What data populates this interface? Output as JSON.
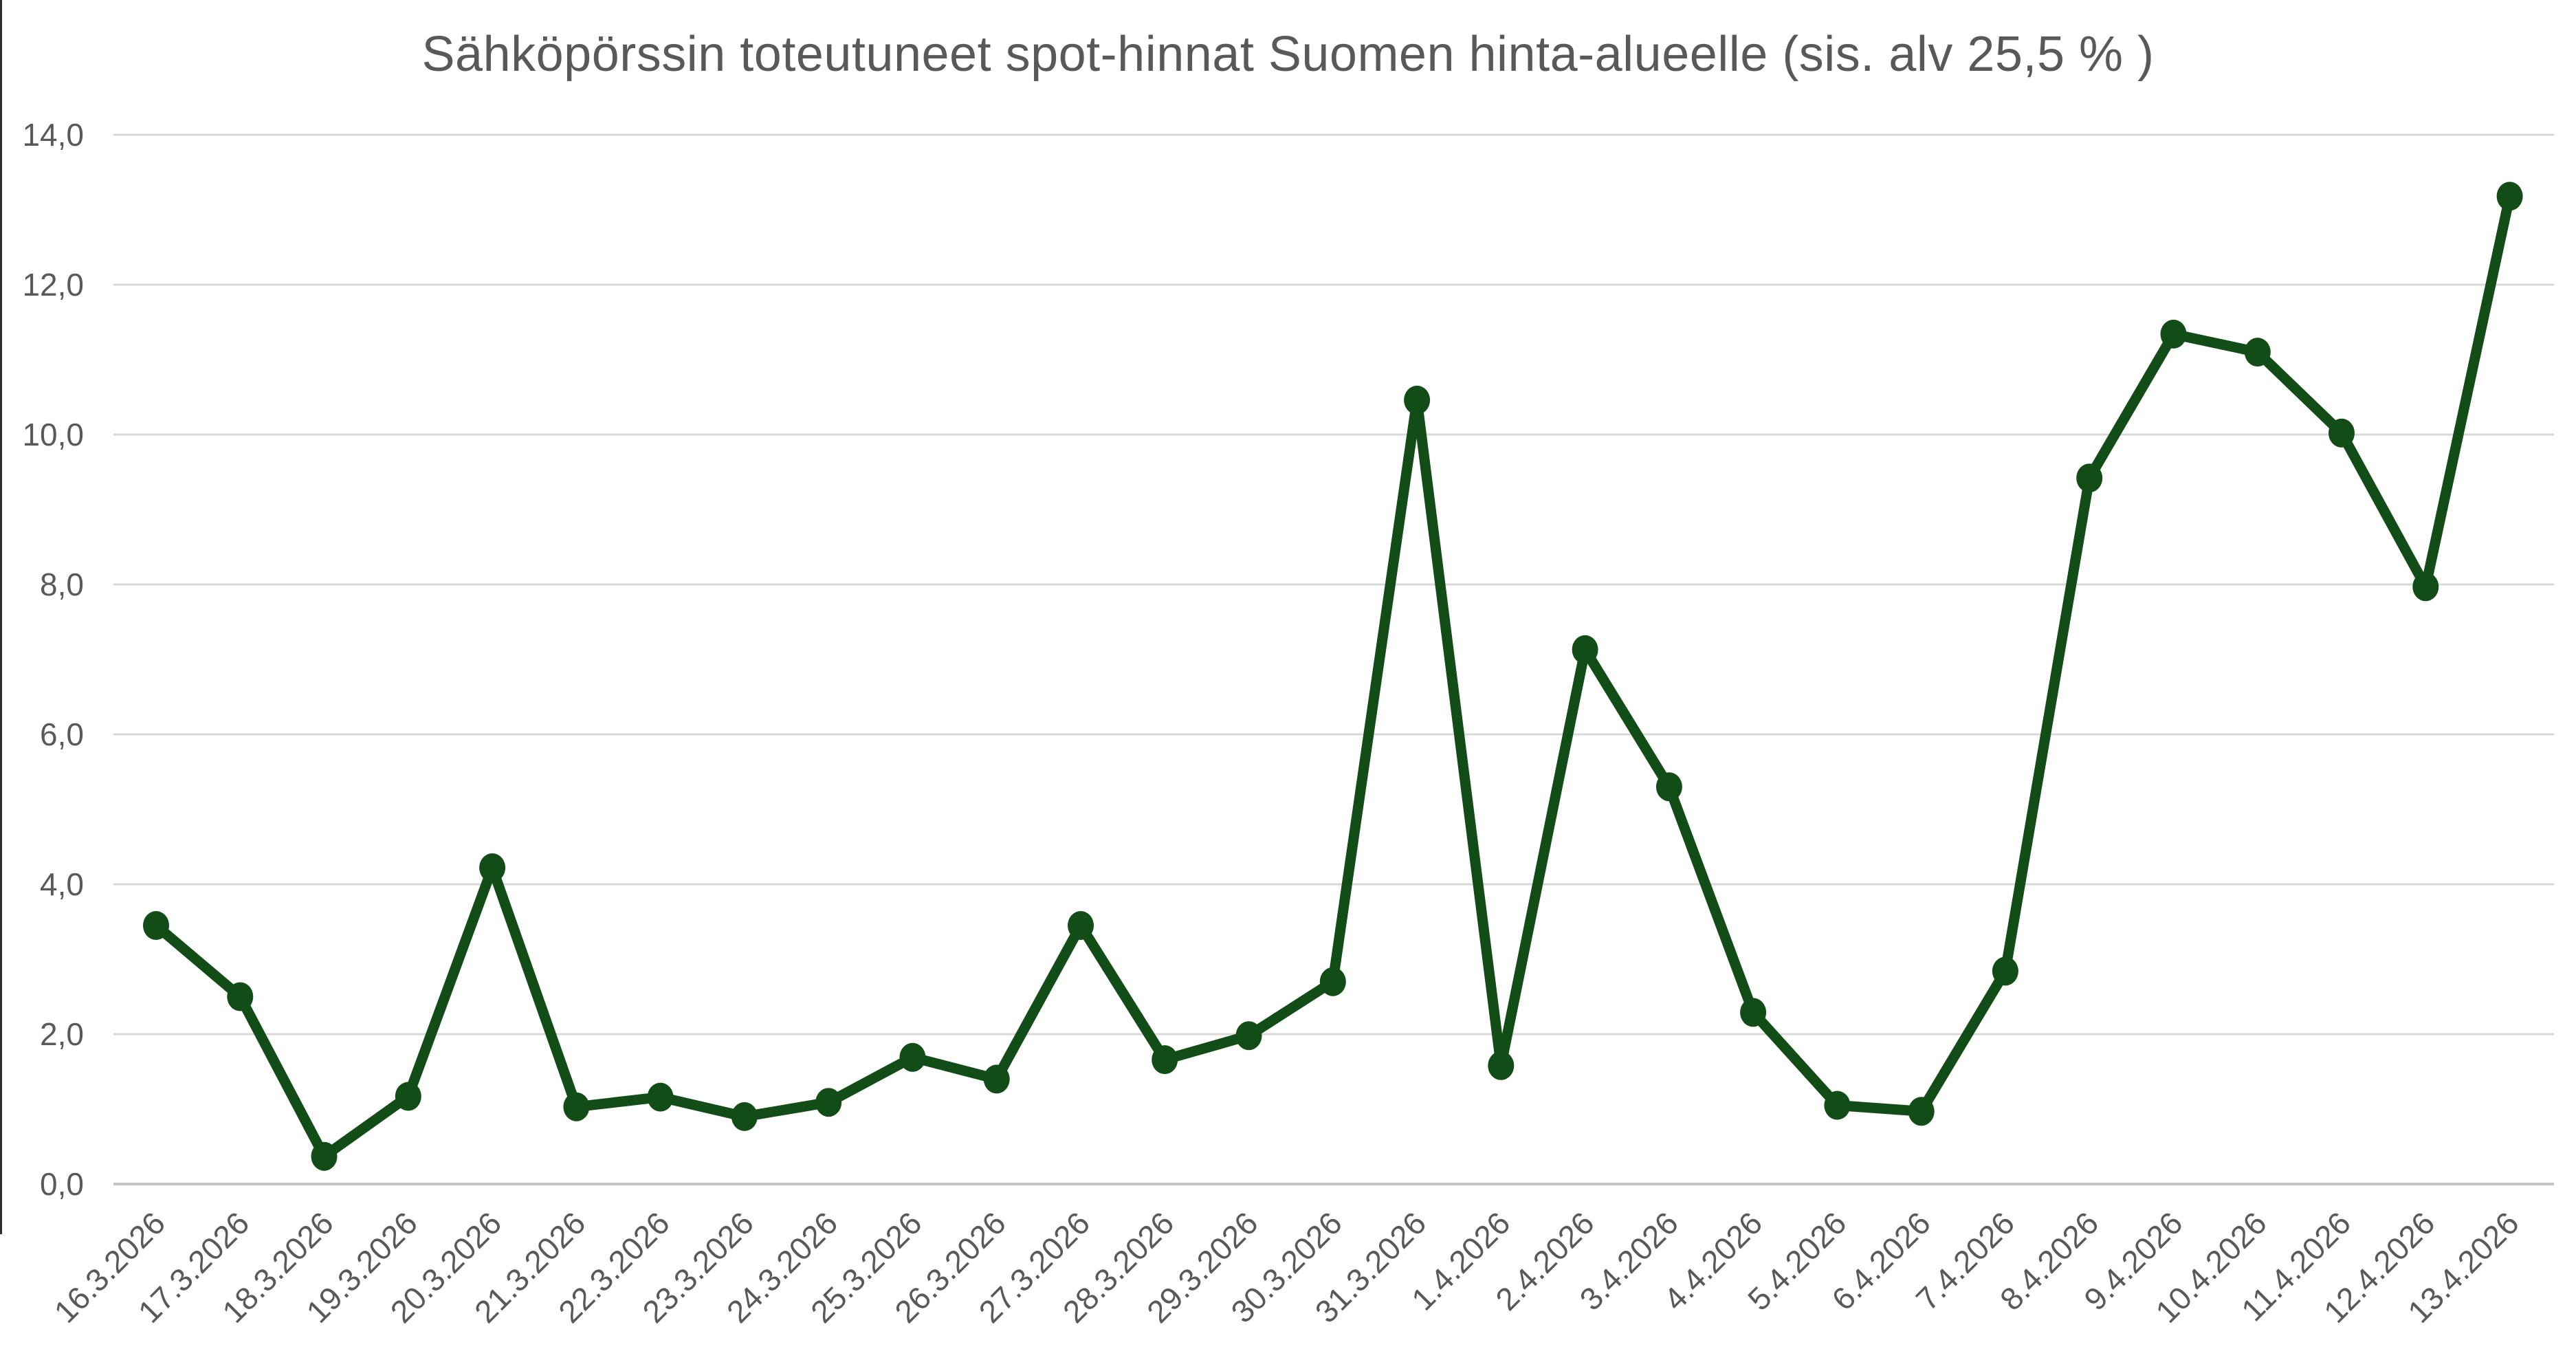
{
  "chart_data": {
    "type": "line",
    "title": "Sähköpörssin toteutuneet spot-hinnat Suomen hinta-alueelle (sis. alv 25,5 % )",
    "categories": [
      "16.3.2026",
      "17.3.2026",
      "18.3.2026",
      "19.3.2026",
      "20.3.2026",
      "21.3.2026",
      "22.3.2026",
      "23.3.2026",
      "24.3.2026",
      "25.3.2026",
      "26.3.2026",
      "27.3.2026",
      "28.3.2026",
      "29.3.2026",
      "30.3.2026",
      "31.3.2026",
      "1.4.2026",
      "2.4.2026",
      "3.4.2026",
      "4.4.2026",
      "5.4.2026",
      "6.4.2026",
      "7.4.2026",
      "8.4.2026",
      "9.4.2026",
      "10.4.2026",
      "11.4.2026",
      "12.4.2026",
      "13.4.2026"
    ],
    "values": [
      3.45,
      2.5,
      0.37,
      1.17,
      4.22,
      1.03,
      1.16,
      0.9,
      1.09,
      1.69,
      1.4,
      3.45,
      1.66,
      1.98,
      2.7,
      10.46,
      1.58,
      7.13,
      5.3,
      2.29,
      1.05,
      0.97,
      2.84,
      9.42,
      11.34,
      11.1,
      10.02,
      7.97,
      13.18
    ],
    "xlabel": "",
    "ylabel": "",
    "ylim": [
      0,
      14
    ],
    "ytick_step": 2,
    "ytick_labels": [
      "0,0",
      "2,0",
      "4,0",
      "6,0",
      "8,0",
      "10,0",
      "12,0",
      "14,0"
    ],
    "grid": true,
    "legend_position": "none",
    "x_label_rotation_deg": -45,
    "decimal_separator": ",",
    "line_color": "#124c16",
    "marker": "circle",
    "marker_color": "#124c16",
    "text_color": "#595959",
    "grid_color": "#d9d9d9",
    "axis_line_color": "#c6c6c6",
    "background_color": "#ffffff"
  }
}
